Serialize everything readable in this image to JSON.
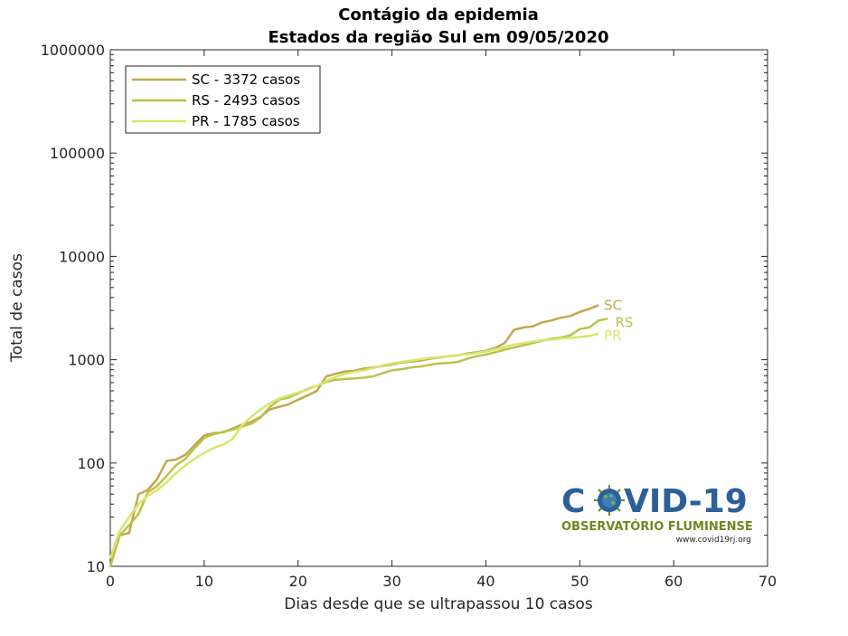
{
  "chart_data": {
    "type": "line",
    "title": "Contágio da epidemia",
    "subtitle": "Estados da região Sul  em 09/05/2020",
    "xlabel": "Dias desde que se ultrapassou 10 casos",
    "ylabel": "Total de casos",
    "xlim": [
      0,
      70
    ],
    "ylim": [
      10,
      1000000
    ],
    "yscale": "log",
    "x_ticks": [
      "0",
      "10",
      "20",
      "30",
      "40",
      "50",
      "60",
      "70"
    ],
    "y_ticks": [
      "10",
      "100",
      "1000",
      "10000",
      "100000",
      "1000000"
    ],
    "grid": false,
    "legend_position": "top-left",
    "series": [
      {
        "name": "SC - 3372 casos",
        "end_label": "SC",
        "color": "#c2a84d",
        "x": [
          0,
          1,
          2,
          3,
          4,
          5,
          6,
          7,
          8,
          9,
          10,
          11,
          12,
          13,
          14,
          15,
          16,
          17,
          18,
          19,
          20,
          21,
          22,
          23,
          24,
          25,
          26,
          27,
          28,
          29,
          30,
          31,
          32,
          33,
          34,
          35,
          36,
          37,
          38,
          39,
          40,
          41,
          42,
          43,
          44,
          45,
          46,
          47,
          48,
          49,
          50,
          51,
          52
        ],
        "y": [
          10,
          20,
          21,
          50,
          55,
          70,
          105,
          108,
          120,
          150,
          185,
          195,
          198,
          215,
          235,
          250,
          280,
          330,
          350,
          370,
          410,
          450,
          500,
          690,
          730,
          770,
          780,
          820,
          840,
          870,
          900,
          940,
          960,
          980,
          1020,
          1050,
          1080,
          1100,
          1150,
          1180,
          1220,
          1300,
          1450,
          1950,
          2050,
          2100,
          2300,
          2400,
          2550,
          2650,
          2900,
          3100,
          3372
        ]
      },
      {
        "name": "RS - 2493 casos",
        "end_label": "RS",
        "color": "#bcc24a",
        "x": [
          0,
          1,
          2,
          3,
          4,
          5,
          6,
          7,
          8,
          9,
          10,
          11,
          12,
          13,
          14,
          15,
          16,
          17,
          18,
          19,
          20,
          21,
          22,
          23,
          24,
          25,
          26,
          27,
          28,
          29,
          30,
          31,
          32,
          33,
          34,
          35,
          36,
          37,
          38,
          39,
          40,
          41,
          42,
          43,
          44,
          45,
          46,
          47,
          48,
          49,
          50,
          51,
          52,
          53
        ],
        "y": [
          10,
          20,
          25,
          32,
          52,
          60,
          75,
          95,
          110,
          140,
          175,
          190,
          200,
          210,
          225,
          240,
          275,
          350,
          410,
          430,
          470,
          520,
          560,
          610,
          640,
          650,
          660,
          670,
          690,
          740,
          790,
          810,
          840,
          860,
          890,
          920,
          930,
          950,
          1020,
          1080,
          1120,
          1180,
          1250,
          1310,
          1380,
          1450,
          1520,
          1600,
          1640,
          1720,
          1980,
          2050,
          2400,
          2493
        ]
      },
      {
        "name": "PR - 1785 casos",
        "end_label": "PR",
        "color": "#d7e66e",
        "x": [
          0,
          1,
          2,
          3,
          4,
          5,
          6,
          7,
          8,
          9,
          10,
          11,
          12,
          13,
          14,
          15,
          16,
          17,
          18,
          19,
          20,
          21,
          22,
          23,
          24,
          25,
          26,
          27,
          28,
          29,
          30,
          31,
          32,
          33,
          34,
          35,
          36,
          37,
          38,
          39,
          40,
          41,
          42,
          43,
          44,
          45,
          46,
          47,
          48,
          49,
          50,
          51,
          52
        ],
        "y": [
          12,
          22,
          30,
          40,
          48,
          55,
          65,
          80,
          95,
          110,
          125,
          140,
          150,
          170,
          230,
          280,
          330,
          380,
          420,
          450,
          480,
          510,
          560,
          620,
          680,
          730,
          760,
          790,
          830,
          880,
          920,
          950,
          980,
          1010,
          1040,
          1060,
          1080,
          1100,
          1130,
          1160,
          1200,
          1260,
          1330,
          1400,
          1450,
          1500,
          1540,
          1570,
          1600,
          1630,
          1660,
          1700,
          1785
        ]
      }
    ]
  },
  "logo": {
    "title_left": "C",
    "title_right": "VID-19",
    "subtitle": "OBSERVATÓRIO FLUMINENSE",
    "url": "www.covid19rj.org",
    "colors": {
      "title": "#2d6099",
      "subtitle": "#6a8a1f",
      "virus": "#2d6099"
    }
  }
}
